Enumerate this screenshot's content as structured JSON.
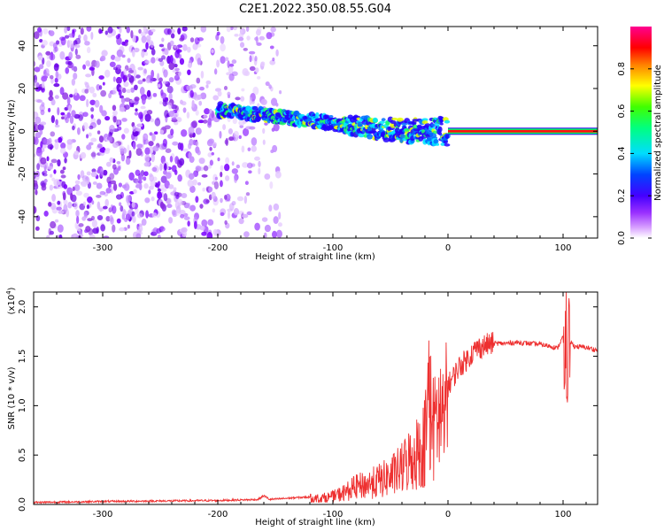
{
  "title": "C2E1.2022.350.08.55.G04",
  "chart_data": [
    {
      "type": "heatmap",
      "name": "spectrogram",
      "xlabel": "Height of straight line (km)",
      "ylabel": "Frequency (Hz)",
      "xlim": [
        -360,
        130
      ],
      "ylim": [
        -50,
        49
      ],
      "xticks": [
        -300,
        -200,
        -100,
        0,
        100
      ],
      "yticks": [
        -40,
        -20,
        0,
        20,
        40
      ],
      "colorbar": {
        "label": "Normalized spectral amplitude",
        "range": [
          0,
          1
        ],
        "ticks": [
          "0.0",
          "0.2",
          "0.4",
          "0.6",
          "0.8"
        ],
        "colors": [
          "#ffffff",
          "#c060ff",
          "#7a00ff",
          "#0000ff",
          "#00e5ff",
          "#00ff40",
          "#ffff00",
          "#ff8000",
          "#ff0000",
          "#ff00aa"
        ]
      },
      "features": [
        {
          "desc": "broadband noise",
          "x_range": [
            -360,
            -150
          ],
          "amplitude": [
            0.05,
            0.25
          ]
        },
        {
          "desc": "signal track",
          "points": [
            [
              -200,
              10
            ],
            [
              -150,
              7
            ],
            [
              -100,
              4
            ],
            [
              -60,
              1
            ],
            [
              -30,
              0
            ],
            [
              0,
              0
            ]
          ],
          "amplitude": [
            0.3,
            0.5
          ]
        },
        {
          "desc": "flat line",
          "x_range": [
            0,
            130
          ],
          "y": 0,
          "amplitude": 0.95
        }
      ]
    },
    {
      "type": "line",
      "name": "snr",
      "xlabel": "Height of straight line (km)",
      "ylabel": "SNR (10 * v/v)",
      "yscale_label": "(x10",
      "yscale_exp": "4",
      "y_multiplier": 10000,
      "color": "#ee3030",
      "xlim": [
        -360,
        130
      ],
      "ylim": [
        0,
        2.15
      ],
      "xticks": [
        -300,
        -200,
        -100,
        0,
        100
      ],
      "yticks": [
        "0.0",
        "0.5",
        "1.0",
        "1.5",
        "2.0"
      ],
      "x": [
        -360,
        -300,
        -250,
        -200,
        -165,
        -160,
        -155,
        -130,
        -110,
        -100,
        -90,
        -80,
        -70,
        -60,
        -50,
        -40,
        -35,
        -30,
        -25,
        -20,
        -16,
        -14,
        -12,
        -10,
        -5,
        0,
        5,
        10,
        15,
        20,
        25,
        30,
        35,
        40,
        50,
        60,
        70,
        80,
        90,
        95,
        100,
        102,
        104,
        106,
        110,
        120,
        130
      ],
      "y": [
        0.02,
        0.03,
        0.035,
        0.04,
        0.05,
        0.09,
        0.05,
        0.07,
        0.08,
        0.1,
        0.15,
        0.22,
        0.25,
        0.3,
        0.35,
        0.45,
        0.55,
        0.6,
        0.7,
        0.8,
        1.5,
        1.0,
        0.9,
        1.1,
        1.15,
        1.2,
        1.3,
        1.4,
        1.45,
        1.52,
        1.58,
        1.6,
        1.62,
        1.63,
        1.63,
        1.64,
        1.63,
        1.62,
        1.6,
        1.58,
        1.7,
        1.2,
        1.3,
        1.65,
        1.6,
        1.59,
        1.56
      ]
    }
  ]
}
